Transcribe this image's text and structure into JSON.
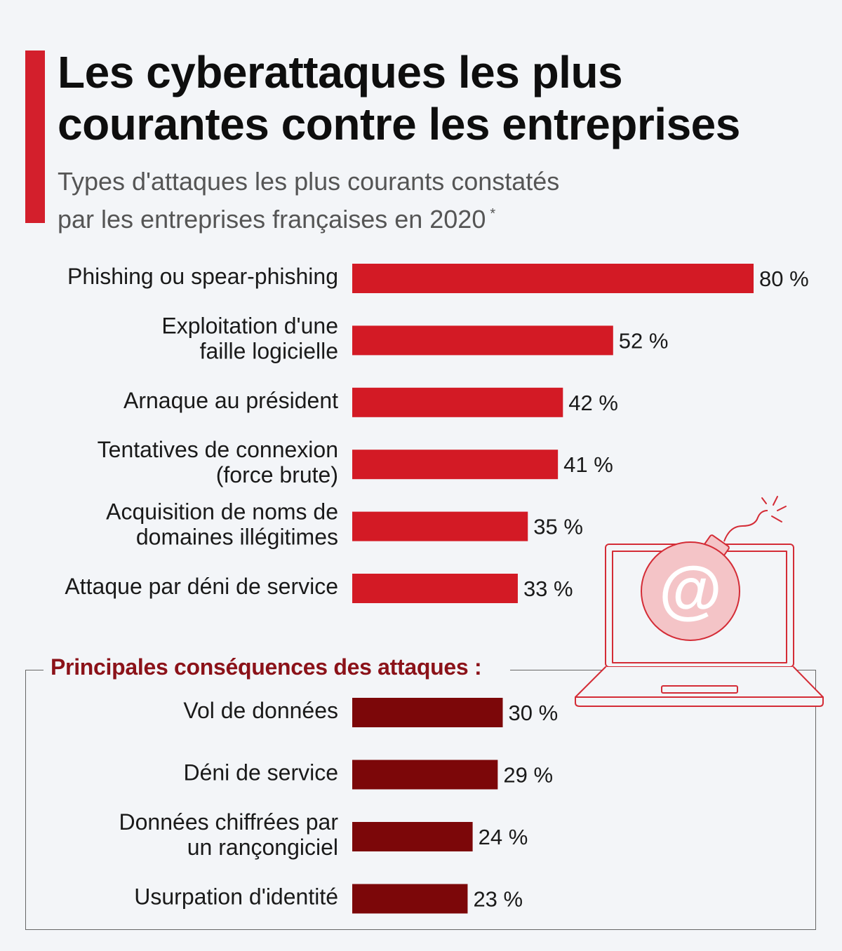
{
  "title_lines": [
    "Les cyberattaques les plus",
    "courantes contre les entreprises"
  ],
  "subtitle_lines": [
    "Types d'attaques les plus courants constatés",
    "par les entreprises françaises en 2020"
  ],
  "subtitle_note": "*",
  "consequences_title": "Principales conséquences des attaques :",
  "colors": {
    "accent": "#d31f2c",
    "attack_bar": "#d31a25",
    "consequence_bar": "#7c0709",
    "illustration": "#d42c36"
  },
  "illustration": {
    "icon": "laptop-bomb-icon",
    "symbol": "@"
  },
  "chart_data": [
    {
      "type": "bar",
      "orientation": "horizontal",
      "title": "Types d'attaques les plus courants constatés",
      "unit": "%",
      "xlim": [
        0,
        80
      ],
      "categories": [
        [
          "Phishing ou spear-phishing"
        ],
        [
          "Exploitation d'une",
          "faille logicielle"
        ],
        [
          "Arnaque au président"
        ],
        [
          "Tentatives de connexion",
          "(force brute)"
        ],
        [
          "Acquisition de noms de",
          "domaines illégitimes"
        ],
        [
          "Attaque par déni de service"
        ]
      ],
      "values": [
        80,
        52,
        42,
        41,
        35,
        33
      ],
      "value_labels": [
        "80 %",
        "52 %",
        "42 %",
        "41 %",
        "35 %",
        "33 %"
      ]
    },
    {
      "type": "bar",
      "orientation": "horizontal",
      "title": "Principales conséquences des attaques :",
      "unit": "%",
      "xlim": [
        0,
        80
      ],
      "categories": [
        [
          "Vol de données"
        ],
        [
          "Déni de service"
        ],
        [
          "Données chiffrées par",
          "un rançongiciel"
        ],
        [
          "Usurpation d'identité"
        ]
      ],
      "values": [
        30,
        29,
        24,
        23
      ],
      "value_labels": [
        "30 %",
        "29 %",
        "24 %",
        "23 %"
      ]
    }
  ]
}
